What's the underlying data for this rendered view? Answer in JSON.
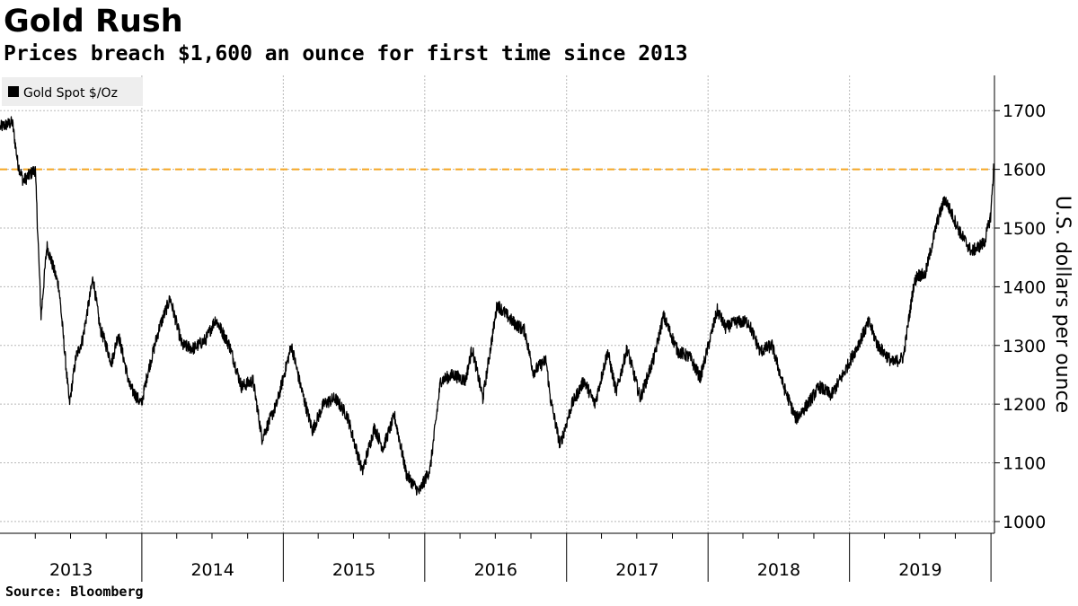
{
  "title": "Gold Rush",
  "subtitle": "Prices breach $1,600 an ounce for first time since 2013",
  "source": "Source: Bloomberg",
  "colors": {
    "line": "#000000",
    "reference": "#f5a623",
    "grid": "#b8b8b8",
    "legend_bg": "#eeeeee"
  },
  "chart_data": {
    "type": "line",
    "title": "Gold Rush",
    "subtitle": "Prices breach $1,600 an ounce for first time since 2013",
    "ylabel": "U.S. dollars per ounce",
    "y_axis_side": "right",
    "ylim": [
      980,
      1760
    ],
    "yticks": [
      1000,
      1100,
      1200,
      1300,
      1400,
      1500,
      1600,
      1700
    ],
    "xlim": [
      "2012-12-31",
      "2020-01-10"
    ],
    "x_year_labels": [
      "2013",
      "2014",
      "2015",
      "2016",
      "2017",
      "2018",
      "2019"
    ],
    "grid": true,
    "legend": {
      "position": "top-left",
      "entries": [
        "Gold Spot $/Oz"
      ]
    },
    "reference_line": {
      "value": 1600,
      "style": "dashed"
    },
    "series": [
      {
        "name": "Gold Spot $/Oz",
        "x": [
          "2013-01-01",
          "2013-02-01",
          "2013-02-15",
          "2013-03-01",
          "2013-04-01",
          "2013-04-16",
          "2013-05-01",
          "2013-06-01",
          "2013-06-28",
          "2013-07-15",
          "2013-08-01",
          "2013-08-28",
          "2013-09-15",
          "2013-10-01",
          "2013-10-15",
          "2013-11-01",
          "2013-12-01",
          "2013-12-31",
          "2014-01-15",
          "2014-02-15",
          "2014-03-15",
          "2014-04-15",
          "2014-05-15",
          "2014-06-15",
          "2014-07-10",
          "2014-08-15",
          "2014-09-15",
          "2014-10-15",
          "2014-11-07",
          "2014-12-15",
          "2015-01-22",
          "2015-02-15",
          "2015-03-17",
          "2015-04-15",
          "2015-05-15",
          "2015-06-15",
          "2015-07-24",
          "2015-08-24",
          "2015-09-15",
          "2015-10-15",
          "2015-11-15",
          "2015-12-17",
          "2016-01-15",
          "2016-02-11",
          "2016-03-15",
          "2016-04-15",
          "2016-05-02",
          "2016-05-30",
          "2016-07-06",
          "2016-08-15",
          "2016-09-15",
          "2016-10-07",
          "2016-11-09",
          "2016-11-20",
          "2016-12-15",
          "2017-01-15",
          "2017-02-15",
          "2017-03-15",
          "2017-04-17",
          "2017-05-09",
          "2017-06-06",
          "2017-07-10",
          "2017-08-15",
          "2017-09-08",
          "2017-10-15",
          "2017-11-15",
          "2017-12-12",
          "2018-01-25",
          "2018-02-15",
          "2018-03-15",
          "2018-04-15",
          "2018-05-15",
          "2018-06-15",
          "2018-07-15",
          "2018-08-16",
          "2018-09-15",
          "2018-10-15",
          "2018-11-15",
          "2018-12-15",
          "2019-01-15",
          "2019-02-20",
          "2019-03-15",
          "2019-04-23",
          "2019-05-20",
          "2019-06-15",
          "2019-06-25",
          "2019-07-15",
          "2019-08-15",
          "2019-09-04",
          "2019-10-15",
          "2019-11-12",
          "2019-12-15",
          "2019-12-31",
          "2020-01-06",
          "2020-01-08"
        ],
        "values": [
          1672,
          1680,
          1610,
          1580,
          1600,
          1350,
          1470,
          1400,
          1200,
          1280,
          1310,
          1415,
          1330,
          1300,
          1270,
          1320,
          1230,
          1200,
          1250,
          1330,
          1380,
          1300,
          1295,
          1310,
          1345,
          1300,
          1230,
          1240,
          1142,
          1200,
          1300,
          1230,
          1155,
          1200,
          1210,
          1180,
          1085,
          1160,
          1125,
          1180,
          1080,
          1050,
          1090,
          1240,
          1250,
          1240,
          1295,
          1210,
          1370,
          1340,
          1325,
          1255,
          1275,
          1210,
          1130,
          1200,
          1240,
          1200,
          1290,
          1220,
          1295,
          1210,
          1280,
          1350,
          1290,
          1280,
          1245,
          1360,
          1330,
          1340,
          1340,
          1290,
          1300,
          1230,
          1175,
          1200,
          1230,
          1215,
          1250,
          1290,
          1340,
          1300,
          1270,
          1280,
          1400,
          1420,
          1420,
          1510,
          1550,
          1490,
          1460,
          1475,
          1520,
          1580,
          1610
        ]
      }
    ]
  }
}
